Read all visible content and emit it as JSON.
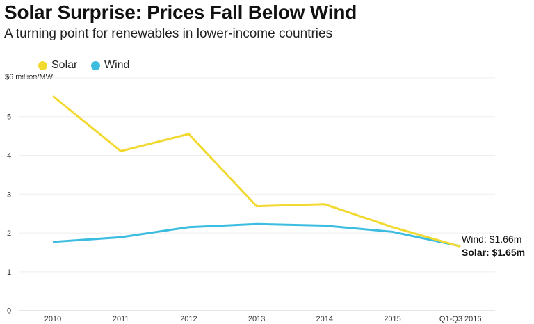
{
  "chart_data": {
    "type": "line",
    "title": "Solar Surprise: Prices Fall Below Wind",
    "subtitle": "A turning point for renewables in lower-income countries",
    "xlabel": "",
    "ylabel": "$6 million/MW",
    "categories": [
      "2010",
      "2011",
      "2012",
      "2013",
      "2014",
      "2015",
      "Q1-Q3 2016"
    ],
    "ylim": [
      0,
      6
    ],
    "yticks": [
      "0",
      "1",
      "2",
      "3",
      "4",
      "5"
    ],
    "grid": true,
    "legend_placement": "top-left",
    "series": [
      {
        "name": "Solar",
        "color": "#f2d930",
        "values": [
          5.53,
          4.11,
          4.55,
          2.69,
          2.74,
          2.15,
          1.65
        ]
      },
      {
        "name": "Wind",
        "color": "#3cbde0",
        "values": [
          1.77,
          1.89,
          2.15,
          2.23,
          2.19,
          2.03,
          1.66
        ]
      }
    ],
    "annotations": {
      "wind": "Wind: $1.66m",
      "solar": "Solar: $1.65m"
    }
  }
}
